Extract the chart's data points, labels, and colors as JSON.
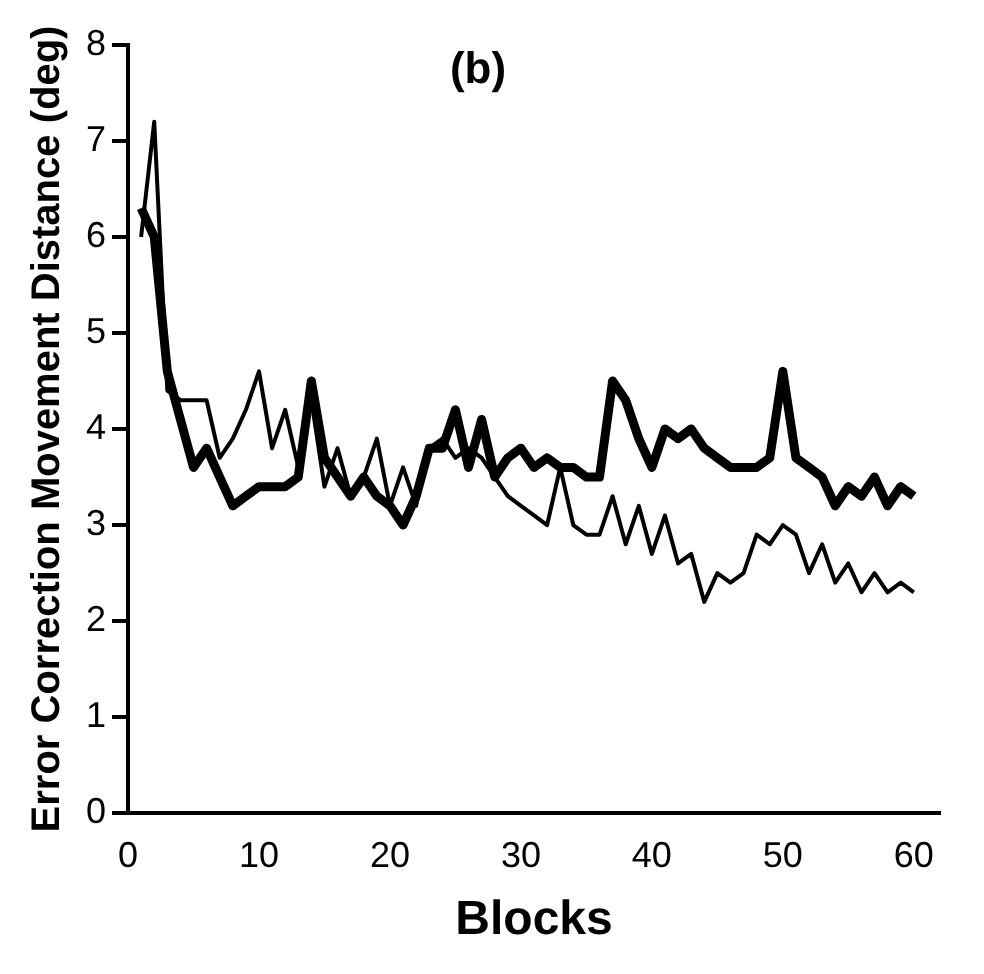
{
  "chart_data": {
    "type": "line",
    "title": "(b)",
    "xlabel": "Blocks",
    "ylabel": "Error Correction Movement Distance (deg)",
    "x": [
      1,
      2,
      3,
      4,
      5,
      6,
      7,
      8,
      9,
      10,
      11,
      12,
      13,
      14,
      15,
      16,
      17,
      18,
      19,
      20,
      21,
      22,
      23,
      24,
      25,
      26,
      27,
      28,
      29,
      30,
      31,
      32,
      33,
      34,
      35,
      36,
      37,
      38,
      39,
      40,
      41,
      42,
      43,
      44,
      45,
      46,
      47,
      48,
      49,
      50,
      51,
      52,
      53,
      54,
      55,
      56,
      57,
      58,
      59,
      60
    ],
    "series": [
      {
        "color": "#000000",
        "values": [
          6.3,
          6.0,
          4.6,
          4.1,
          3.6,
          3.8,
          3.5,
          3.2,
          3.3,
          3.4,
          3.4,
          3.4,
          3.5,
          4.5,
          3.7,
          3.5,
          3.3,
          3.5,
          3.3,
          3.2,
          3.0,
          3.3,
          3.8,
          3.8,
          4.2,
          3.6,
          4.1,
          3.5,
          3.7,
          3.8,
          3.6,
          3.7,
          3.6,
          3.6,
          3.5,
          3.5,
          4.5,
          4.3,
          3.9,
          3.6,
          4.0,
          3.9,
          4.0,
          3.8,
          3.7,
          3.6,
          3.6,
          3.6,
          3.7,
          4.6,
          3.7,
          3.6,
          3.5,
          3.2,
          3.4,
          3.3,
          3.5,
          3.2,
          3.4,
          3.3
        ]
      },
      {
        "color": "#000000",
        "values": [
          6.0,
          7.2,
          4.4,
          4.3,
          4.3,
          4.3,
          3.7,
          3.9,
          4.2,
          4.6,
          3.8,
          4.2,
          3.6,
          4.3,
          3.4,
          3.8,
          3.3,
          3.5,
          3.9,
          3.2,
          3.6,
          3.2,
          3.8,
          3.9,
          3.7,
          3.8,
          3.7,
          3.5,
          3.3,
          3.2,
          3.1,
          3.0,
          3.6,
          3.0,
          2.9,
          2.9,
          3.3,
          2.8,
          3.2,
          2.7,
          3.1,
          2.6,
          2.7,
          2.2,
          2.5,
          2.4,
          2.5,
          2.9,
          2.8,
          3.0,
          2.9,
          2.5,
          2.8,
          2.4,
          2.6,
          2.3,
          2.5,
          2.3,
          2.4,
          2.3
        ]
      }
    ],
    "xlim": [
      0,
      62
    ],
    "xticks": [
      0,
      10,
      20,
      30,
      40,
      50,
      60
    ],
    "ylim": [
      0,
      8
    ],
    "yticks": [
      0,
      1,
      2,
      3,
      4,
      5,
      6,
      7,
      8
    ],
    "grid": false,
    "legend": false
  }
}
